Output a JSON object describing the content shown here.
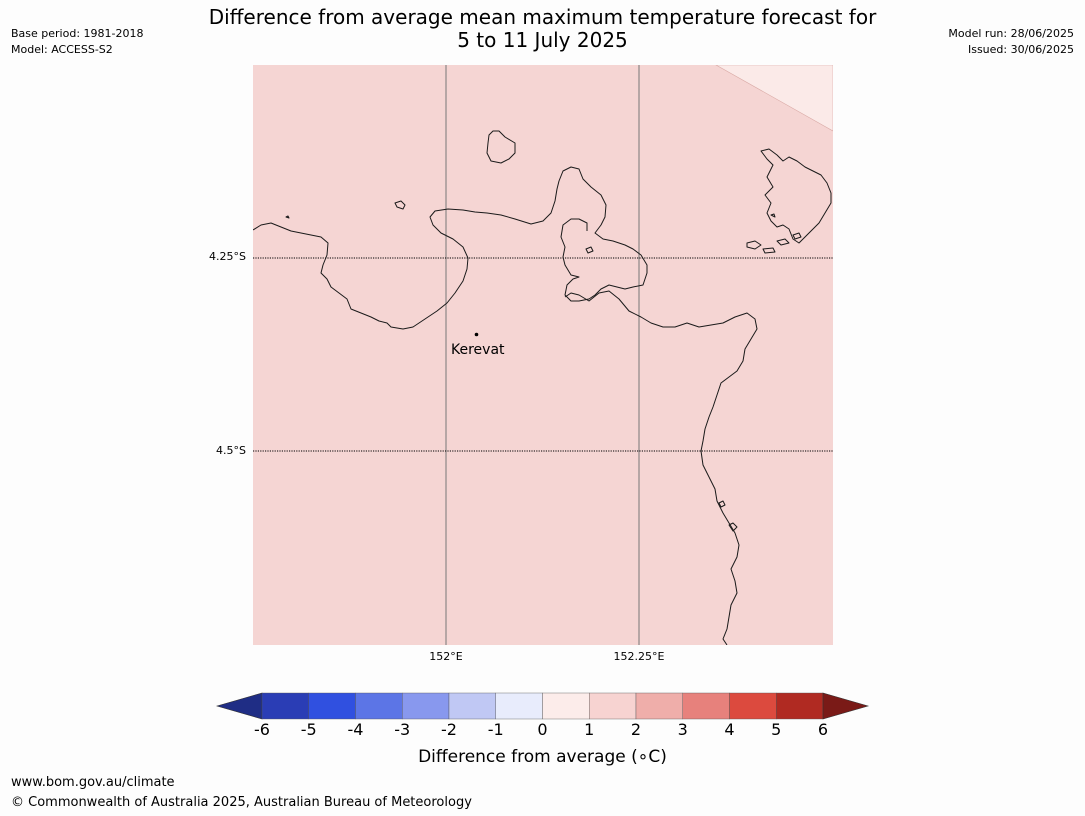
{
  "header": {
    "title_line1": "Difference from average mean maximum temperature forecast for",
    "title_line2": "5 to 11 July 2025",
    "base_period": "Base period: 1981-2018",
    "model": "Model: ACCESS-S2",
    "model_run": "Model run: 28/06/2025",
    "issued": "Issued: 30/06/2025"
  },
  "map": {
    "lat_labels": [
      "4.25°S",
      "4.5°S"
    ],
    "lon_labels": [
      "152°E",
      "152.25°E"
    ],
    "place": "Kerevat",
    "fill_colors": {
      "main": "#f5d5d3",
      "corner": "#fbeae8",
      "coast": "#1a1a1a"
    }
  },
  "colorbar": {
    "ticks": [
      "-6",
      "-5",
      "-4",
      "-3",
      "-2",
      "-1",
      "0",
      "1",
      "2",
      "3",
      "4",
      "5",
      "6"
    ],
    "colors": [
      "#1f2d85",
      "#2a3db5",
      "#3050e0",
      "#5c75e6",
      "#8898ee",
      "#c0c8f4",
      "#e8ecfc",
      "#fcecea",
      "#f7d3d1",
      "#efaeaa",
      "#e7817c",
      "#dc4a3e",
      "#b02a22",
      "#7a1a17"
    ],
    "label": "Difference from average (∘C)"
  },
  "footer": {
    "url": "www.bom.gov.au/climate",
    "copyright": "© Commonwealth of Australia 2025, Australian Bureau of Meteorology"
  }
}
